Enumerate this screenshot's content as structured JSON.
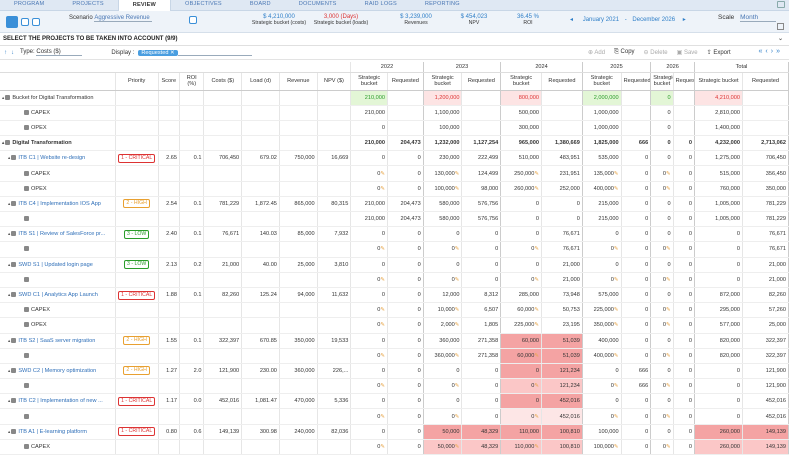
{
  "nav": {
    "tabs": [
      "PROGRAM",
      "PROJECTS",
      "REVIEW",
      "OBJECTIVES",
      "BOARD",
      "DOCUMENTS",
      "RAID LOGS",
      "REPORTING"
    ],
    "active": "REVIEW"
  },
  "toolbar": {
    "scenario_label": "Scenario",
    "scenario_value": "Aggressive Revenue",
    "kpis": [
      {
        "value": "$ 4,210,000",
        "label": "Strategic bucket (costs)",
        "color": "blue"
      },
      {
        "value": "3,000 (Days)",
        "label": "Strategic bucket (loads)",
        "color": "red"
      },
      {
        "value": "$ 3,239,000",
        "label": "Revenues",
        "color": "blue"
      },
      {
        "value": "$ 454,023",
        "label": "NPV",
        "color": "blue"
      },
      {
        "value": "36.45 %",
        "label": "ROI",
        "color": "blue"
      }
    ],
    "date_from": "January 2021",
    "date_to": "December 2026",
    "scale_label": "Scale",
    "scale_value": "Month"
  },
  "selection_header": "SELECT THE PROJECTS TO BE TAKEN INTO ACCOUNT (9/9)",
  "filters": {
    "type_label": "Type:",
    "type_value": "Costs ($)",
    "display_label": "Display :",
    "chip": "Requested"
  },
  "actions": {
    "add": "Add",
    "copy": "Copy",
    "delete": "Delete",
    "save": "Save",
    "export": "Export"
  },
  "columns": {
    "priority": "Priority",
    "score": "Score",
    "roi": "ROI (%)",
    "costs": "Costs ($)",
    "load": "Load (d)",
    "revenue": "Revenue",
    "npv": "NPV ($)",
    "years": [
      "2022",
      "2023",
      "2024",
      "2025",
      "2026",
      "Total"
    ],
    "sb": "Strategic bucket",
    "req": "Requested"
  },
  "rows": [
    {
      "name": "Bucket for Digital Transformation",
      "type": "bucket",
      "priority": "",
      "score": "",
      "roi": "",
      "costs": "",
      "load": "",
      "revenue": "",
      "npv": "",
      "cells": [
        [
          "210,000",
          ""
        ],
        [
          "1,200,000",
          ""
        ],
        [
          "800,000",
          ""
        ],
        [
          "2,000,000",
          ""
        ],
        [
          "0",
          ""
        ],
        [
          "4,210,000",
          ""
        ]
      ],
      "styles": [
        [
          "bg-green green",
          ""
        ],
        [
          "bg-red red",
          ""
        ],
        [
          "bg-red red",
          ""
        ],
        [
          "bg-green green",
          ""
        ],
        [
          "bg-green green",
          ""
        ],
        [
          "bg-red red",
          ""
        ]
      ]
    },
    {
      "name": "CAPEX",
      "type": "sub",
      "cells": [
        [
          "210,000",
          ""
        ],
        [
          "1,100,000",
          ""
        ],
        [
          "500,000",
          ""
        ],
        [
          "1,000,000",
          ""
        ],
        [
          "0",
          ""
        ],
        [
          "2,810,000",
          ""
        ]
      ]
    },
    {
      "name": "OPEX",
      "type": "sub",
      "cells": [
        [
          "0",
          ""
        ],
        [
          "100,000",
          ""
        ],
        [
          "300,000",
          ""
        ],
        [
          "1,000,000",
          ""
        ],
        [
          "0",
          ""
        ],
        [
          "1,400,000",
          ""
        ]
      ]
    },
    {
      "name": "Digital Transformation",
      "type": "portfolio",
      "cells": [
        [
          "210,000",
          "204,473"
        ],
        [
          "1,232,000",
          "1,127,254"
        ],
        [
          "965,000",
          "1,380,669"
        ],
        [
          "1,825,000",
          "666"
        ],
        [
          "0",
          "0"
        ],
        [
          "4,232,000",
          "2,713,062"
        ]
      ]
    },
    {
      "name": "ITB C1 | Website re-design",
      "type": "project",
      "priority": "1 - CRITICAL",
      "pclass": "critical",
      "score": "2.65",
      "roi": "0.1",
      "costs": "706,450",
      "load": "679.02",
      "revenue": "750,000",
      "npv": "16,669",
      "cells": [
        [
          "0",
          "0"
        ],
        [
          "230,000",
          "222,499"
        ],
        [
          "510,000",
          "483,951"
        ],
        [
          "535,000",
          "0"
        ],
        [
          "0",
          "0"
        ],
        [
          "1,275,000",
          "706,450"
        ]
      ]
    },
    {
      "name": "CAPEX",
      "type": "sub",
      "pin": true,
      "cells": [
        [
          "0",
          "0"
        ],
        [
          "130,000",
          "124,499"
        ],
        [
          "250,000",
          "231,951"
        ],
        [
          "135,000",
          "0"
        ],
        [
          "0",
          "0"
        ],
        [
          "515,000",
          "356,450"
        ]
      ]
    },
    {
      "name": "OPEX",
      "type": "sub",
      "pin": true,
      "cells": [
        [
          "0",
          "0"
        ],
        [
          "100,000",
          "98,000"
        ],
        [
          "260,000",
          "252,000"
        ],
        [
          "400,000",
          "0"
        ],
        [
          "0",
          "0"
        ],
        [
          "760,000",
          "350,000"
        ]
      ]
    },
    {
      "name": "ITB C4 | Implementation IOS App",
      "type": "project",
      "priority": "2 - HIGH",
      "pclass": "high",
      "score": "2.54",
      "roi": "0.1",
      "costs": "781,229",
      "load": "1,872.45",
      "revenue": "865,000",
      "npv": "80,315",
      "cells": [
        [
          "210,000",
          "204,473"
        ],
        [
          "580,000",
          "576,756"
        ],
        [
          "0",
          "0"
        ],
        [
          "215,000",
          "0"
        ],
        [
          "0",
          "0"
        ],
        [
          "1,005,000",
          "781,229"
        ]
      ]
    },
    {
      "name": "",
      "type": "sub",
      "cells": [
        [
          "210,000",
          "204,473"
        ],
        [
          "580,000",
          "576,756"
        ],
        [
          "0",
          "0"
        ],
        [
          "215,000",
          "0"
        ],
        [
          "0",
          "0"
        ],
        [
          "1,005,000",
          "781,229"
        ]
      ]
    },
    {
      "name": "ITB S1 | Review of SalesForce pr...",
      "type": "project",
      "priority": "3 - LOW",
      "pclass": "low",
      "score": "2.40",
      "roi": "0.1",
      "costs": "76,671",
      "load": "140.03",
      "revenue": "85,000",
      "npv": "7,932",
      "cells": [
        [
          "0",
          "0"
        ],
        [
          "0",
          "0"
        ],
        [
          "0",
          "76,671"
        ],
        [
          "0",
          "0"
        ],
        [
          "0",
          "0"
        ],
        [
          "0",
          "76,671"
        ]
      ]
    },
    {
      "name": "",
      "type": "sub",
      "pin": true,
      "cells": [
        [
          "0",
          "0"
        ],
        [
          "0",
          "0"
        ],
        [
          "0",
          "76,671"
        ],
        [
          "0",
          "0"
        ],
        [
          "0",
          "0"
        ],
        [
          "0",
          "76,671"
        ]
      ]
    },
    {
      "name": "SWD S1 | Updated login page",
      "type": "project",
      "priority": "3 - LOW",
      "pclass": "low",
      "score": "2.13",
      "roi": "0.2",
      "costs": "21,000",
      "load": "40.00",
      "revenue": "25,000",
      "npv": "3,810",
      "cells": [
        [
          "0",
          "0"
        ],
        [
          "0",
          "0"
        ],
        [
          "0",
          "21,000"
        ],
        [
          "0",
          "0"
        ],
        [
          "0",
          "0"
        ],
        [
          "0",
          "21,000"
        ]
      ]
    },
    {
      "name": "",
      "type": "sub",
      "pin": true,
      "cells": [
        [
          "0",
          "0"
        ],
        [
          "0",
          "0"
        ],
        [
          "0",
          "21,000"
        ],
        [
          "0",
          "0"
        ],
        [
          "0",
          "0"
        ],
        [
          "0",
          "21,000"
        ]
      ]
    },
    {
      "name": "SWD C1 | Analytics App Launch",
      "type": "project",
      "priority": "1 - CRITICAL",
      "pclass": "critical",
      "score": "1.88",
      "roi": "0.1",
      "costs": "82,260",
      "load": "125.24",
      "revenue": "94,000",
      "npv": "11,632",
      "cells": [
        [
          "0",
          "0"
        ],
        [
          "12,000",
          "8,312"
        ],
        [
          "285,000",
          "73,948"
        ],
        [
          "575,000",
          "0"
        ],
        [
          "0",
          "0"
        ],
        [
          "872,000",
          "82,260"
        ]
      ]
    },
    {
      "name": "CAPEX",
      "type": "sub",
      "pin": true,
      "cells": [
        [
          "0",
          "0"
        ],
        [
          "10,000",
          "6,507"
        ],
        [
          "60,000",
          "50,753"
        ],
        [
          "225,000",
          "0"
        ],
        [
          "0",
          "0"
        ],
        [
          "295,000",
          "57,260"
        ]
      ]
    },
    {
      "name": "OPEX",
      "type": "sub",
      "pin": true,
      "cells": [
        [
          "0",
          "0"
        ],
        [
          "2,000",
          "1,805"
        ],
        [
          "225,000",
          "23,195"
        ],
        [
          "350,000",
          "0"
        ],
        [
          "0",
          "0"
        ],
        [
          "577,000",
          "25,000"
        ]
      ]
    },
    {
      "name": "ITB S2 | SaaS server migration",
      "type": "project",
      "priority": "2 - HIGH",
      "pclass": "high",
      "score": "1.55",
      "roi": "0.1",
      "costs": "322,397",
      "load": "670.85",
      "revenue": "350,000",
      "npv": "19,533",
      "cells": [
        [
          "0",
          "0"
        ],
        [
          "360,000",
          "271,358"
        ],
        [
          "60,000",
          "51,039"
        ],
        [
          "400,000",
          "0"
        ],
        [
          "0",
          "0"
        ],
        [
          "820,000",
          "322,397"
        ]
      ],
      "styles": [
        [
          "",
          ""
        ],
        [
          "",
          ""
        ],
        [
          "bg-strong",
          "bg-strong"
        ],
        [
          "",
          ""
        ],
        [
          "",
          ""
        ],
        [
          "",
          ""
        ]
      ]
    },
    {
      "name": "",
      "type": "sub",
      "pin": true,
      "cells": [
        [
          "0",
          "0"
        ],
        [
          "360,000",
          "271,358"
        ],
        [
          "60,000",
          "51,039"
        ],
        [
          "400,000",
          "0"
        ],
        [
          "0",
          "0"
        ],
        [
          "820,000",
          "322,397"
        ]
      ],
      "styles": [
        [
          "",
          ""
        ],
        [
          "",
          ""
        ],
        [
          "bg-strong",
          "bg-strong"
        ],
        [
          "",
          ""
        ],
        [
          "",
          ""
        ],
        [
          "",
          ""
        ]
      ]
    },
    {
      "name": "SWD C2 | Memory optimization",
      "type": "project",
      "priority": "2 - HIGH",
      "pclass": "high",
      "score": "1.27",
      "roi": "2.0",
      "costs": "121,900",
      "load": "230.00",
      "revenue": "360,000",
      "npv": "226,...",
      "cells": [
        [
          "0",
          "0"
        ],
        [
          "0",
          "0"
        ],
        [
          "0",
          "121,234"
        ],
        [
          "0",
          "666"
        ],
        [
          "0",
          "0"
        ],
        [
          "0",
          "121,900"
        ]
      ],
      "styles": [
        [
          "",
          ""
        ],
        [
          "",
          ""
        ],
        [
          "bg-strong",
          "bg-strong"
        ],
        [
          "",
          ""
        ],
        [
          "",
          ""
        ],
        [
          "",
          ""
        ]
      ]
    },
    {
      "name": "",
      "type": "sub",
      "pin": true,
      "cells": [
        [
          "0",
          "0"
        ],
        [
          "0",
          "0"
        ],
        [
          "0",
          "121,234"
        ],
        [
          "0",
          "666"
        ],
        [
          "0",
          "0"
        ],
        [
          "0",
          "121,900"
        ]
      ],
      "styles": [
        [
          "",
          ""
        ],
        [
          "",
          ""
        ],
        [
          "bg-mid",
          "bg-mid"
        ],
        [
          "",
          ""
        ],
        [
          "",
          ""
        ],
        [
          "",
          ""
        ]
      ]
    },
    {
      "name": "ITB C2 | Implementation of new ...",
      "type": "project",
      "priority": "1 - CRITICAL",
      "pclass": "critical",
      "score": "1.17",
      "roi": "0.0",
      "costs": "452,016",
      "load": "1,081.47",
      "revenue": "470,000",
      "npv": "5,336",
      "cells": [
        [
          "0",
          "0"
        ],
        [
          "0",
          "0"
        ],
        [
          "0",
          "452,016"
        ],
        [
          "0",
          "0"
        ],
        [
          "0",
          "0"
        ],
        [
          "0",
          "452,016"
        ]
      ],
      "styles": [
        [
          "",
          ""
        ],
        [
          "",
          ""
        ],
        [
          "bg-strong",
          "bg-strong"
        ],
        [
          "",
          ""
        ],
        [
          "",
          ""
        ],
        [
          "",
          ""
        ]
      ]
    },
    {
      "name": "",
      "type": "sub",
      "pin": true,
      "cells": [
        [
          "0",
          "0"
        ],
        [
          "0",
          "0"
        ],
        [
          "0",
          "452,016"
        ],
        [
          "0",
          "0"
        ],
        [
          "0",
          "0"
        ],
        [
          "0",
          "452,016"
        ]
      ],
      "styles": [
        [
          "",
          ""
        ],
        [
          "",
          ""
        ],
        [
          "bg-light",
          "bg-light"
        ],
        [
          "",
          ""
        ],
        [
          "",
          ""
        ],
        [
          "",
          ""
        ]
      ]
    },
    {
      "name": "ITB A1 | E-learning platform",
      "type": "project",
      "priority": "1 - CRITICAL",
      "pclass": "critical",
      "score": "0.80",
      "roi": "0.6",
      "costs": "149,139",
      "load": "300.98",
      "revenue": "240,000",
      "npv": "82,036",
      "cells": [
        [
          "0",
          "0"
        ],
        [
          "50,000",
          "48,329"
        ],
        [
          "110,000",
          "100,810"
        ],
        [
          "100,000",
          "0"
        ],
        [
          "0",
          "0"
        ],
        [
          "260,000",
          "149,139"
        ]
      ],
      "styles": [
        [
          "",
          ""
        ],
        [
          "bg-strong",
          "bg-strong"
        ],
        [
          "bg-strong",
          "bg-strong"
        ],
        [
          "",
          ""
        ],
        [
          "",
          ""
        ],
        [
          "bg-strong",
          "bg-strong"
        ]
      ]
    },
    {
      "name": "CAPEX",
      "type": "sub",
      "pin": true,
      "cells": [
        [
          "0",
          "0"
        ],
        [
          "50,000",
          "48,329"
        ],
        [
          "110,000",
          "100,810"
        ],
        [
          "100,000",
          "0"
        ],
        [
          "0",
          "0"
        ],
        [
          "260,000",
          "149,139"
        ]
      ],
      "styles": [
        [
          "",
          ""
        ],
        [
          "bg-mid",
          "bg-mid"
        ],
        [
          "bg-mid",
          "bg-mid"
        ],
        [
          "",
          ""
        ],
        [
          "",
          ""
        ],
        [
          "bg-mid",
          "bg-mid"
        ]
      ]
    }
  ]
}
